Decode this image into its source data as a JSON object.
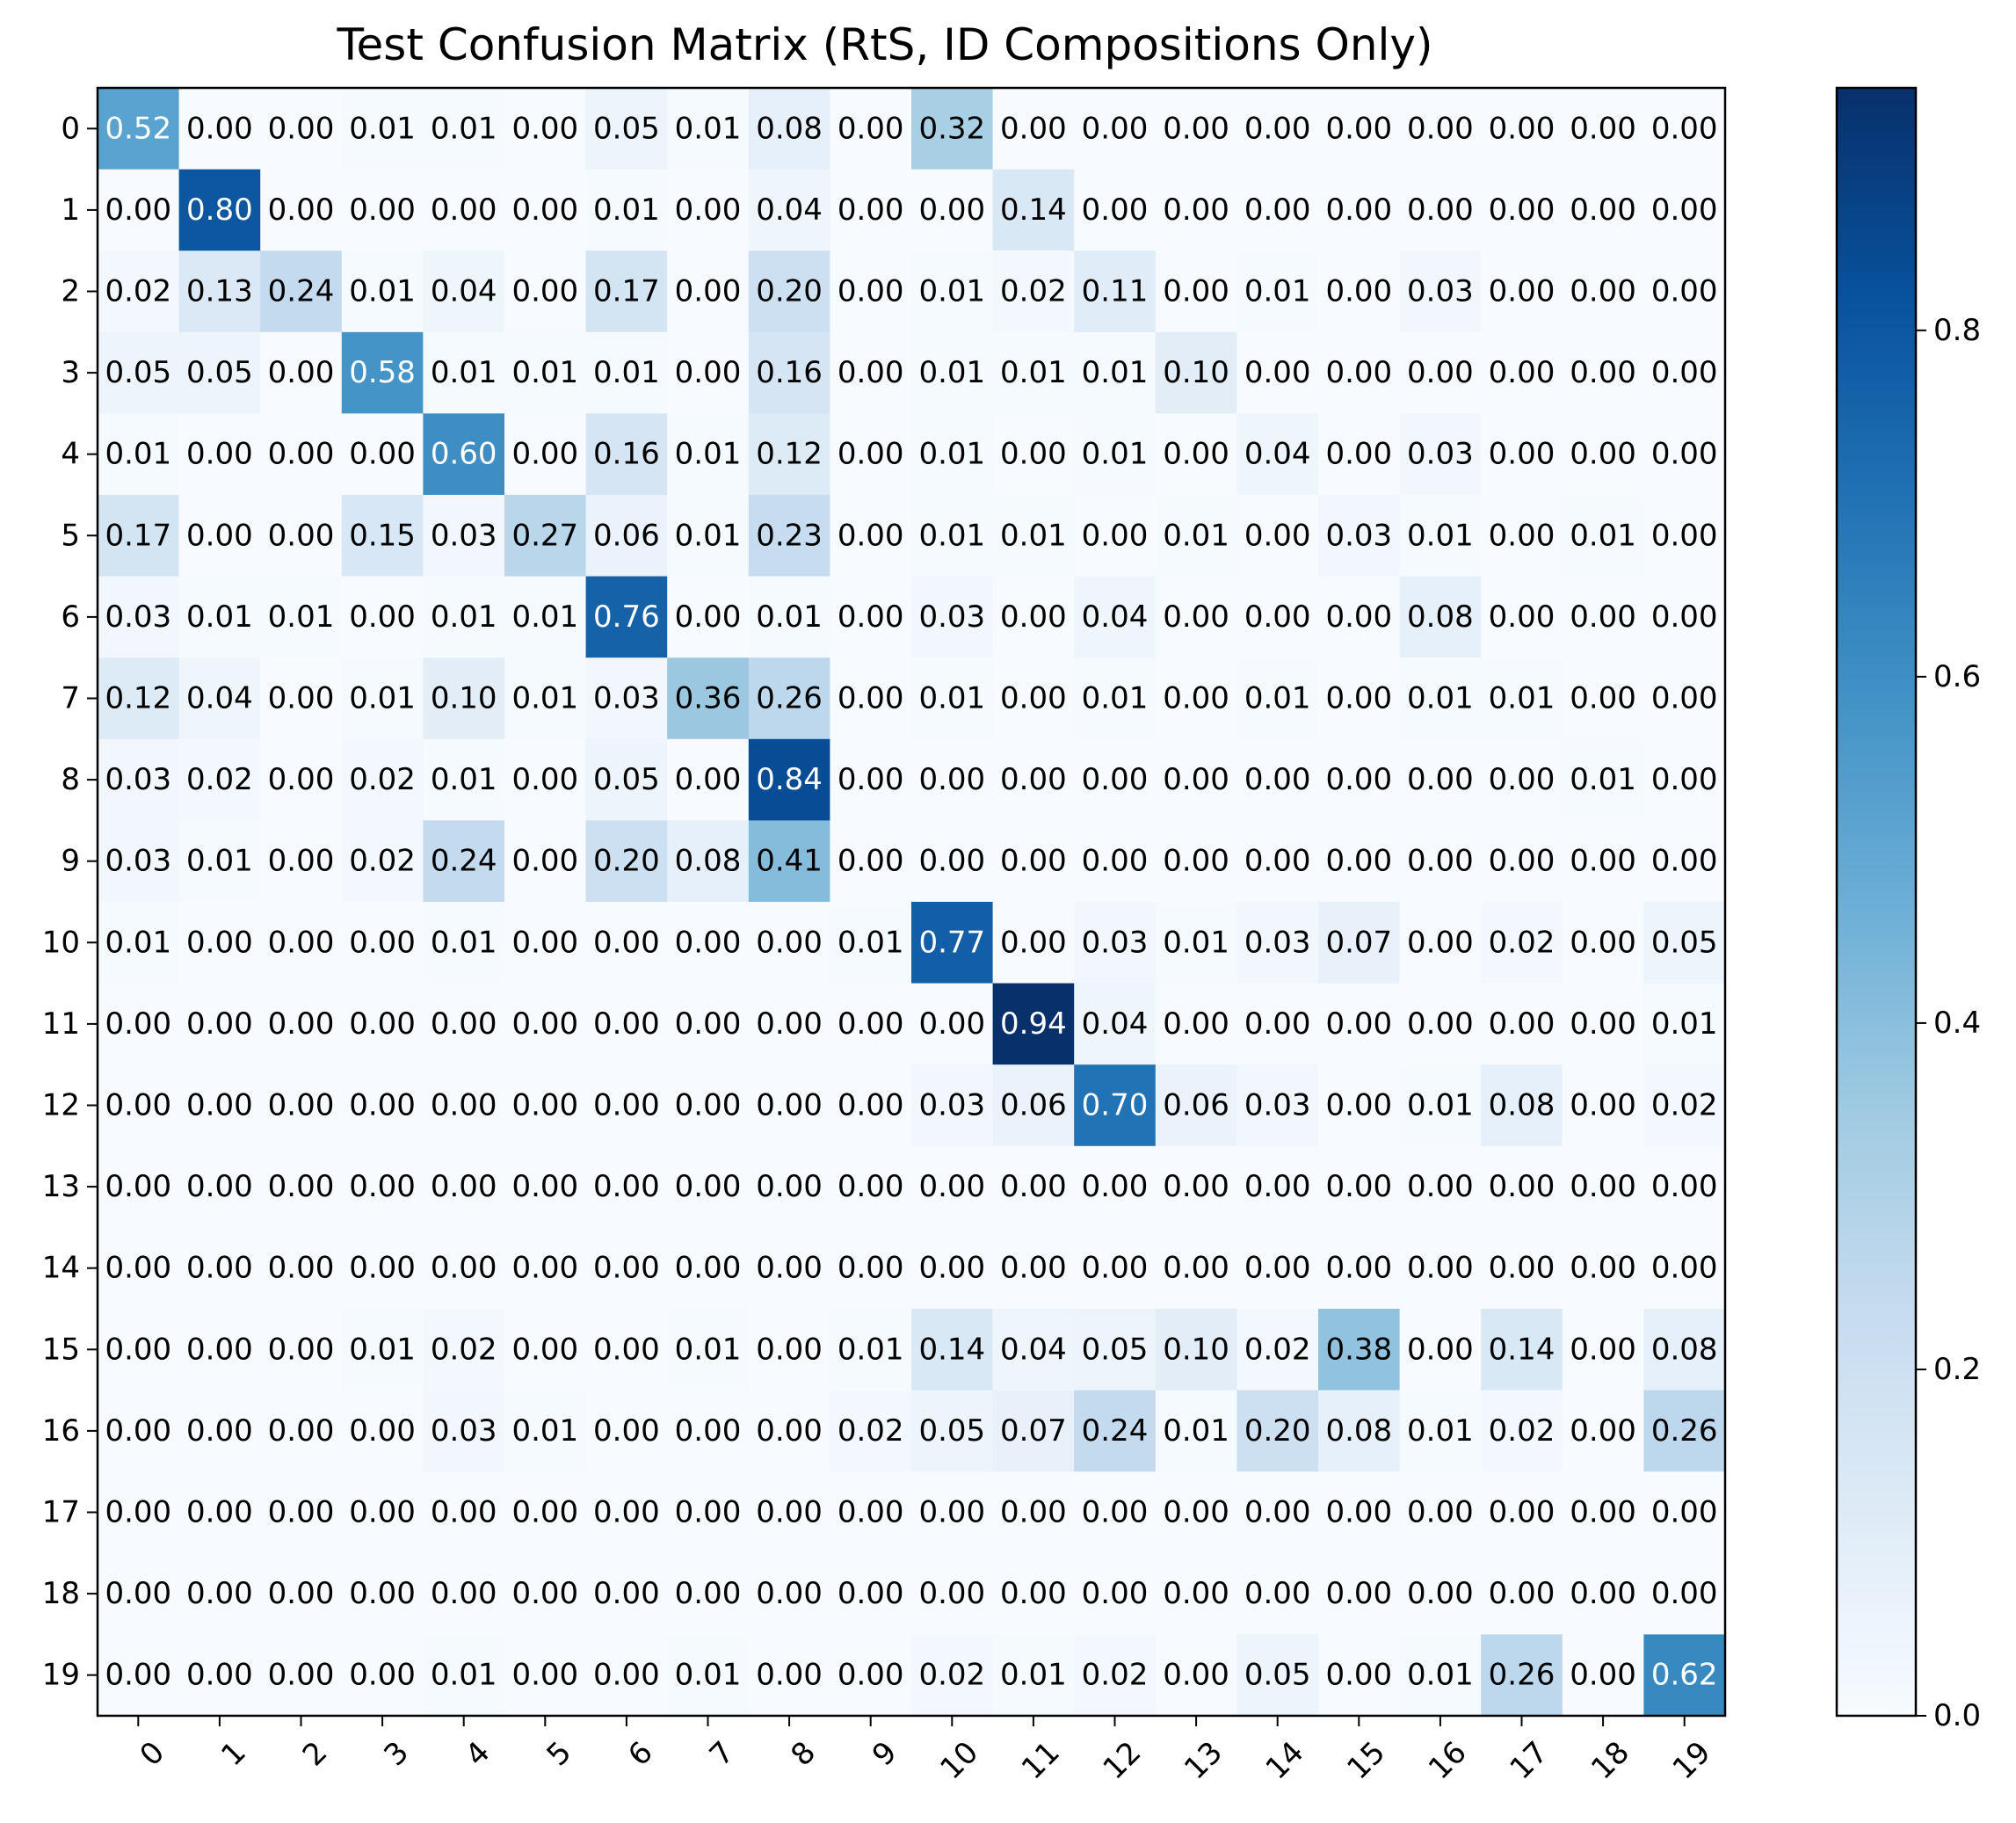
{
  "chart_data": {
    "type": "heatmap",
    "title": "Test Confusion Matrix (RtS, ID Compositions Only)",
    "xlabel": "",
    "ylabel": "",
    "x_tick_labels": [
      "0",
      "1",
      "2",
      "3",
      "4",
      "5",
      "6",
      "7",
      "8",
      "9",
      "10",
      "11",
      "12",
      "13",
      "14",
      "15",
      "16",
      "17",
      "18",
      "19"
    ],
    "y_tick_labels": [
      "0",
      "1",
      "2",
      "3",
      "4",
      "5",
      "6",
      "7",
      "8",
      "9",
      "10",
      "11",
      "12",
      "13",
      "14",
      "15",
      "16",
      "17",
      "18",
      "19"
    ],
    "values": [
      [
        0.52,
        0.0,
        0.0,
        0.01,
        0.01,
        0.0,
        0.05,
        0.01,
        0.08,
        0.0,
        0.32,
        0.0,
        0.0,
        0.0,
        0.0,
        0.0,
        0.0,
        0.0,
        0.0,
        0.0
      ],
      [
        0.0,
        0.8,
        0.0,
        0.0,
        0.0,
        0.0,
        0.01,
        0.0,
        0.04,
        0.0,
        0.0,
        0.14,
        0.0,
        0.0,
        0.0,
        0.0,
        0.0,
        0.0,
        0.0,
        0.0
      ],
      [
        0.02,
        0.13,
        0.24,
        0.01,
        0.04,
        0.0,
        0.17,
        0.0,
        0.2,
        0.0,
        0.01,
        0.02,
        0.11,
        0.0,
        0.01,
        0.0,
        0.03,
        0.0,
        0.0,
        0.0
      ],
      [
        0.05,
        0.05,
        0.0,
        0.58,
        0.01,
        0.01,
        0.01,
        0.0,
        0.16,
        0.0,
        0.01,
        0.01,
        0.01,
        0.1,
        0.0,
        0.0,
        0.0,
        0.0,
        0.0,
        0.0
      ],
      [
        0.01,
        0.0,
        0.0,
        0.0,
        0.6,
        0.0,
        0.16,
        0.01,
        0.12,
        0.0,
        0.01,
        0.0,
        0.01,
        0.0,
        0.04,
        0.0,
        0.03,
        0.0,
        0.0,
        0.0
      ],
      [
        0.17,
        0.0,
        0.0,
        0.15,
        0.03,
        0.27,
        0.06,
        0.01,
        0.23,
        0.0,
        0.01,
        0.01,
        0.0,
        0.01,
        0.0,
        0.03,
        0.01,
        0.0,
        0.01,
        0.0
      ],
      [
        0.03,
        0.01,
        0.01,
        0.0,
        0.01,
        0.01,
        0.76,
        0.0,
        0.01,
        0.0,
        0.03,
        0.0,
        0.04,
        0.0,
        0.0,
        0.0,
        0.08,
        0.0,
        0.0,
        0.0
      ],
      [
        0.12,
        0.04,
        0.0,
        0.01,
        0.1,
        0.01,
        0.03,
        0.36,
        0.26,
        0.0,
        0.01,
        0.0,
        0.01,
        0.0,
        0.01,
        0.0,
        0.01,
        0.01,
        0.0,
        0.0
      ],
      [
        0.03,
        0.02,
        0.0,
        0.02,
        0.01,
        0.0,
        0.05,
        0.0,
        0.84,
        0.0,
        0.0,
        0.0,
        0.0,
        0.0,
        0.0,
        0.0,
        0.0,
        0.0,
        0.01,
        0.0
      ],
      [
        0.03,
        0.01,
        0.0,
        0.02,
        0.24,
        0.0,
        0.2,
        0.08,
        0.41,
        0.0,
        0.0,
        0.0,
        0.0,
        0.0,
        0.0,
        0.0,
        0.0,
        0.0,
        0.0,
        0.0
      ],
      [
        0.01,
        0.0,
        0.0,
        0.0,
        0.01,
        0.0,
        0.0,
        0.0,
        0.0,
        0.01,
        0.77,
        0.0,
        0.03,
        0.01,
        0.03,
        0.07,
        0.0,
        0.02,
        0.0,
        0.05
      ],
      [
        0.0,
        0.0,
        0.0,
        0.0,
        0.0,
        0.0,
        0.0,
        0.0,
        0.0,
        0.0,
        0.0,
        0.94,
        0.04,
        0.0,
        0.0,
        0.0,
        0.0,
        0.0,
        0.0,
        0.01
      ],
      [
        0.0,
        0.0,
        0.0,
        0.0,
        0.0,
        0.0,
        0.0,
        0.0,
        0.0,
        0.0,
        0.03,
        0.06,
        0.7,
        0.06,
        0.03,
        0.0,
        0.01,
        0.08,
        0.0,
        0.02
      ],
      [
        0.0,
        0.0,
        0.0,
        0.0,
        0.0,
        0.0,
        0.0,
        0.0,
        0.0,
        0.0,
        0.0,
        0.0,
        0.0,
        0.0,
        0.0,
        0.0,
        0.0,
        0.0,
        0.0,
        0.0
      ],
      [
        0.0,
        0.0,
        0.0,
        0.0,
        0.0,
        0.0,
        0.0,
        0.0,
        0.0,
        0.0,
        0.0,
        0.0,
        0.0,
        0.0,
        0.0,
        0.0,
        0.0,
        0.0,
        0.0,
        0.0
      ],
      [
        0.0,
        0.0,
        0.0,
        0.01,
        0.02,
        0.0,
        0.0,
        0.01,
        0.0,
        0.01,
        0.14,
        0.04,
        0.05,
        0.1,
        0.02,
        0.38,
        0.0,
        0.14,
        0.0,
        0.08
      ],
      [
        0.0,
        0.0,
        0.0,
        0.0,
        0.03,
        0.01,
        0.0,
        0.0,
        0.0,
        0.02,
        0.05,
        0.07,
        0.24,
        0.01,
        0.2,
        0.08,
        0.01,
        0.02,
        0.0,
        0.26
      ],
      [
        0.0,
        0.0,
        0.0,
        0.0,
        0.0,
        0.0,
        0.0,
        0.0,
        0.0,
        0.0,
        0.0,
        0.0,
        0.0,
        0.0,
        0.0,
        0.0,
        0.0,
        0.0,
        0.0,
        0.0
      ],
      [
        0.0,
        0.0,
        0.0,
        0.0,
        0.0,
        0.0,
        0.0,
        0.0,
        0.0,
        0.0,
        0.0,
        0.0,
        0.0,
        0.0,
        0.0,
        0.0,
        0.0,
        0.0,
        0.0,
        0.0
      ],
      [
        0.0,
        0.0,
        0.0,
        0.0,
        0.01,
        0.0,
        0.0,
        0.01,
        0.0,
        0.0,
        0.02,
        0.01,
        0.02,
        0.0,
        0.05,
        0.0,
        0.01,
        0.26,
        0.0,
        0.62
      ]
    ],
    "colormap": "Blues",
    "color_range": [
      0,
      0.94
    ],
    "colorbar_ticks": [
      "0.0",
      "0.2",
      "0.4",
      "0.6",
      "0.8"
    ],
    "colorbar_tick_values": [
      0.0,
      0.2,
      0.4,
      0.6,
      0.8
    ],
    "grid": false
  }
}
